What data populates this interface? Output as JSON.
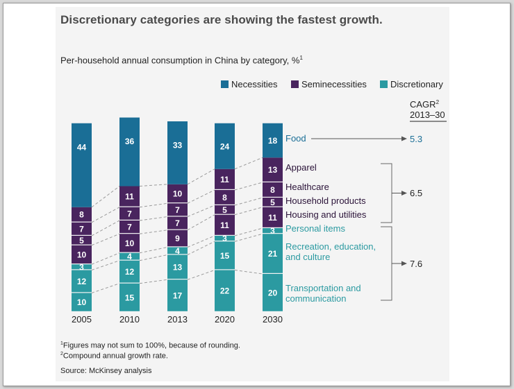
{
  "headline": "Discretionary categories are showing the fastest growth.",
  "subtitle": "Per-household annual consumption in China by category, %",
  "subtitle_sup": "1",
  "notes": {
    "n1_sup": "1",
    "n1": "Figures may not sum to 100%, because of rounding.",
    "n2_sup": "2",
    "n2": "Compound annual growth rate.",
    "source": "Source: McKinsey analysis"
  },
  "colors": {
    "necessities": "#1a6e96",
    "seminecessities": "#49245e",
    "discretionary": "#2b9aa1",
    "dash": "#9a9a9a",
    "bracket": "#666666"
  },
  "chart_data": {
    "type": "bar",
    "stacked": true,
    "orientation": "vertical",
    "categories": [
      "2005",
      "2010",
      "2013",
      "2020",
      "2030"
    ],
    "series": [
      {
        "name": "Transportation and communication",
        "group": "discretionary",
        "values": [
          10,
          15,
          17,
          22,
          20
        ]
      },
      {
        "name": "Recreation, education, and culture",
        "group": "discretionary",
        "values": [
          12,
          12,
          13,
          15,
          21
        ]
      },
      {
        "name": "Personal items",
        "group": "discretionary",
        "values": [
          3,
          4,
          4,
          3,
          3
        ]
      },
      {
        "name": "Housing and utilities",
        "group": "seminecessities",
        "values": [
          10,
          10,
          9,
          11,
          11
        ]
      },
      {
        "name": "Household products",
        "group": "seminecessities",
        "values": [
          5,
          7,
          7,
          5,
          5
        ]
      },
      {
        "name": "Healthcare",
        "group": "seminecessities",
        "values": [
          7,
          7,
          7,
          8,
          8
        ]
      },
      {
        "name": "Apparel",
        "group": "seminecessities",
        "values": [
          8,
          11,
          10,
          11,
          13
        ]
      },
      {
        "name": "Food",
        "group": "necessities",
        "values": [
          44,
          36,
          33,
          24,
          18
        ]
      }
    ],
    "legend": [
      {
        "key": "necessities",
        "label": "Necessities"
      },
      {
        "key": "seminecessities",
        "label": "Seminecessities"
      },
      {
        "key": "discretionary",
        "label": "Discretionary"
      }
    ],
    "category_labels": [
      {
        "lines": [
          "Food"
        ],
        "group": "necessities"
      },
      {
        "lines": [
          "Apparel"
        ],
        "group": "seminecessities"
      },
      {
        "lines": [
          "Healthcare"
        ],
        "group": "seminecessities"
      },
      {
        "lines": [
          "Household products"
        ],
        "group": "seminecessities"
      },
      {
        "lines": [
          "Housing and utilities"
        ],
        "group": "seminecessities"
      },
      {
        "lines": [
          "Personal items"
        ],
        "group": "discretionary"
      },
      {
        "lines": [
          "Recreation, education,",
          "and culture"
        ],
        "group": "discretionary"
      },
      {
        "lines": [
          "Transportation and",
          "communication"
        ],
        "group": "discretionary"
      }
    ],
    "cagr_header": [
      "CAGR",
      "2013–30"
    ],
    "cagr_header_sup": "2",
    "cagr": [
      {
        "value": "5.3",
        "group": "necessities"
      },
      {
        "value": "6.5",
        "group": "seminecessities"
      },
      {
        "value": "7.6",
        "group": "discretionary"
      }
    ],
    "ylim": [
      0,
      100
    ]
  }
}
